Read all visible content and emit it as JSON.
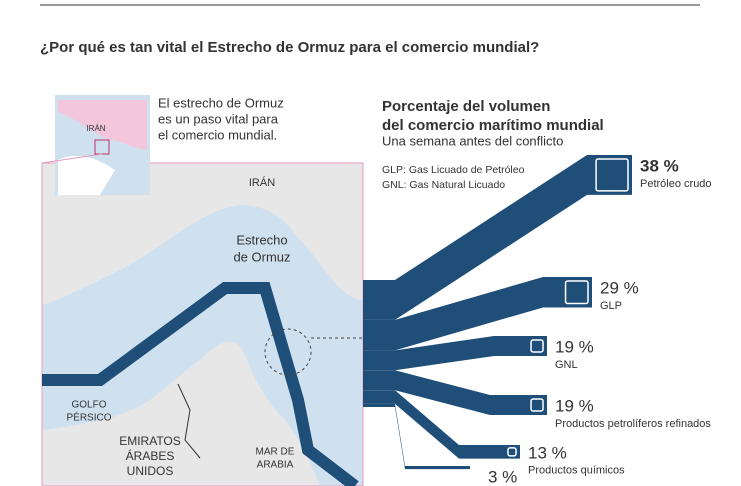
{
  "header": {
    "title": "¿Por qué es tan vital el Estrecho de Ormuz para el comercio mundial?"
  },
  "map": {
    "intro": [
      "El estrecho de Ormuz",
      "es un paso vital para",
      "el comercio mundial."
    ],
    "inset_label": "IRÁN",
    "iran": "IRÁN",
    "strait": [
      "Estrecho",
      "de Ormuz"
    ],
    "gulf": [
      "GOLFO",
      "PÉRSICO"
    ],
    "uae": [
      "EMIRATOS",
      "ÁRABES",
      "UNIDOS"
    ],
    "sea": [
      "MAR DE",
      "ARABIA"
    ]
  },
  "chart_data": {
    "type": "flow",
    "title": [
      "Porcentaje del volumen",
      "del comercio marítimo mundial"
    ],
    "subtitle": "Una semana antes del conflicto",
    "notes": [
      "GLP: Gas Licuado de Petróleo",
      "GNL: Gas Natural Licuado"
    ],
    "categories": [
      "Petróleo crudo",
      "GLP",
      "GNL",
      "Productos petrolíferos refinados",
      "Productos químicos",
      null
    ],
    "values": [
      38,
      29,
      19,
      19,
      13,
      3
    ],
    "value_labels": [
      "38 %",
      "29 %",
      "19 %",
      "19 %",
      "13 %",
      "3 %"
    ],
    "color": "#1f4e79"
  }
}
